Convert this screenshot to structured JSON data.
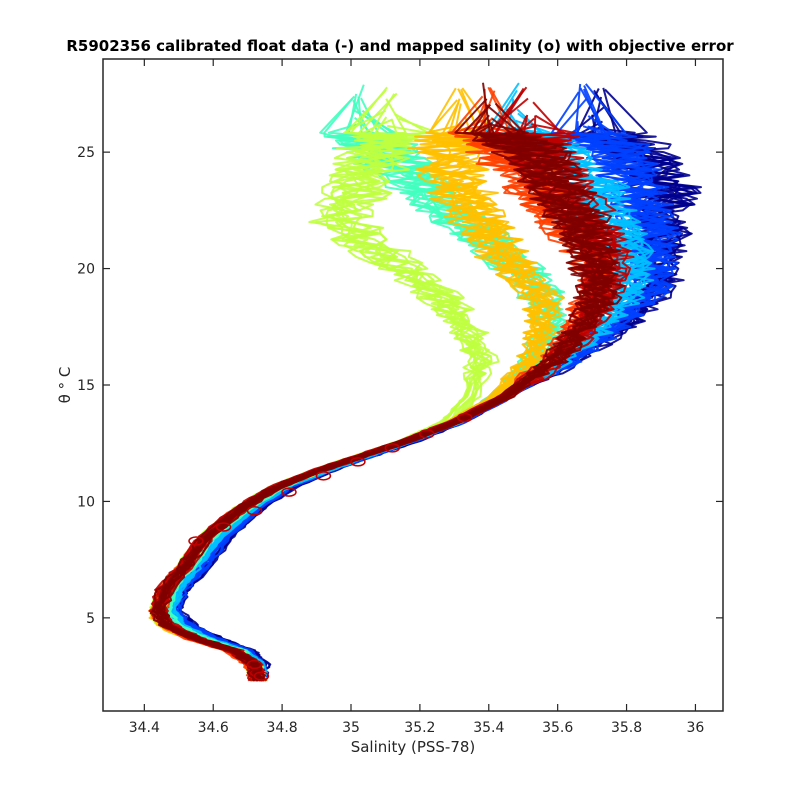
{
  "chart_data": {
    "type": "line",
    "title": "R5902356 calibrated float data (-) and mapped salinity (o) with objective error",
    "xlabel": "Salinity (PSS-78)",
    "ylabel": "θ ° C",
    "xlim": [
      34.28,
      36.08
    ],
    "ylim": [
      1.0,
      29.0
    ],
    "xticks": [
      34.4,
      34.6,
      34.8,
      35.0,
      35.2,
      35.4,
      35.6,
      35.8,
      36.0
    ],
    "xtick_labels": [
      "34.4",
      "34.6",
      "34.8",
      "35",
      "35.2",
      "35.4",
      "35.6",
      "35.8",
      "36"
    ],
    "yticks": [
      5,
      10,
      15,
      20,
      25
    ],
    "ytick_labels": [
      "5",
      "10",
      "15",
      "20",
      "25"
    ],
    "grid": false,
    "colormap": "jet",
    "colors": [
      "#00008f",
      "#0040ff",
      "#00c0ff",
      "#40ffbf",
      "#bfff40",
      "#ffc000",
      "#ff4000",
      "#bf0000",
      "#800000"
    ],
    "mean_profile": {
      "salinity": [
        34.73,
        34.72,
        34.66,
        34.55,
        34.46,
        34.44,
        34.46,
        34.52,
        34.58,
        34.68,
        34.78,
        34.9,
        35.02,
        35.16,
        35.3,
        35.45,
        35.58,
        35.66,
        35.7,
        35.7,
        35.68,
        35.66,
        35.64,
        35.62
      ],
      "theta": [
        2.3,
        3.0,
        3.6,
        4.1,
        4.7,
        5.3,
        6.2,
        7.3,
        8.5,
        9.7,
        10.6,
        11.3,
        11.9,
        12.6,
        13.4,
        14.5,
        16.0,
        17.5,
        19.0,
        20.5,
        22.0,
        23.5,
        25.0,
        26.0
      ]
    },
    "series": [
      {
        "values": [
          0.0,
          0.02,
          0.04,
          0.06,
          0.07,
          0.05,
          0.05,
          0.06,
          0.06,
          0.05,
          0.04,
          0.03,
          0.02,
          0.02,
          0.01,
          0.0,
          0.05,
          0.12,
          0.18,
          0.2,
          0.22,
          0.25,
          0.2,
          0.1
        ]
      },
      {
        "values": [
          0.0,
          0.01,
          0.03,
          0.05,
          0.06,
          0.04,
          0.04,
          0.05,
          0.05,
          0.04,
          0.03,
          0.02,
          0.02,
          0.01,
          0.01,
          0.0,
          0.04,
          0.1,
          0.16,
          0.17,
          0.18,
          0.16,
          0.12,
          0.05
        ]
      },
      {
        "values": [
          0.0,
          0.01,
          0.02,
          0.03,
          0.04,
          0.03,
          0.03,
          0.03,
          0.03,
          0.03,
          0.02,
          0.02,
          0.01,
          0.01,
          0.0,
          0.0,
          0.02,
          0.06,
          0.1,
          0.1,
          0.08,
          0.03,
          -0.05,
          -0.15
        ]
      },
      {
        "values": [
          0.0,
          0.0,
          0.01,
          0.02,
          0.02,
          0.02,
          0.01,
          0.01,
          0.01,
          0.01,
          0.01,
          0.0,
          0.0,
          0.0,
          0.0,
          -0.03,
          -0.05,
          -0.08,
          -0.15,
          -0.25,
          -0.35,
          -0.45,
          -0.55,
          -0.6
        ]
      },
      {
        "values": [
          0.0,
          0.0,
          0.0,
          0.0,
          0.0,
          0.0,
          0.0,
          0.0,
          0.0,
          0.0,
          0.0,
          0.0,
          0.0,
          0.0,
          -0.02,
          -0.1,
          -0.2,
          -0.32,
          -0.45,
          -0.6,
          -0.7,
          -0.65,
          -0.55,
          -0.5
        ]
      },
      {
        "values": [
          0.0,
          0.0,
          0.0,
          -0.01,
          -0.01,
          -0.01,
          0.0,
          0.0,
          0.0,
          0.0,
          0.0,
          0.0,
          0.0,
          0.0,
          -0.01,
          -0.03,
          -0.06,
          -0.1,
          -0.15,
          -0.25,
          -0.3,
          -0.35,
          -0.35,
          -0.3
        ]
      },
      {
        "values": [
          0.0,
          -0.01,
          -0.01,
          -0.01,
          0.0,
          0.0,
          0.0,
          0.0,
          0.0,
          0.0,
          0.0,
          0.0,
          0.0,
          0.0,
          0.0,
          0.0,
          0.0,
          0.0,
          0.02,
          0.0,
          -0.05,
          -0.12,
          -0.18,
          -0.22
        ]
      },
      {
        "values": [
          0.0,
          0.0,
          0.0,
          0.0,
          0.01,
          0.0,
          0.0,
          0.0,
          0.0,
          0.0,
          0.0,
          0.0,
          0.0,
          0.0,
          0.0,
          0.0,
          0.01,
          0.02,
          0.03,
          0.03,
          0.0,
          -0.05,
          -0.1,
          -0.1
        ]
      },
      {
        "values": [
          0.0,
          0.0,
          0.0,
          0.0,
          0.0,
          0.0,
          0.0,
          0.0,
          0.0,
          0.0,
          0.0,
          0.0,
          0.0,
          0.0,
          0.0,
          0.0,
          0.0,
          0.01,
          0.02,
          0.0,
          -0.02,
          -0.06,
          -0.12,
          -0.22
        ]
      }
    ],
    "mapped_points": {
      "salinity": [
        34.74,
        34.72,
        34.55,
        34.63,
        34.72,
        34.82,
        34.92,
        35.02,
        35.12,
        35.22,
        35.33
      ],
      "theta": [
        2.5,
        3.0,
        8.3,
        8.9,
        9.6,
        10.4,
        11.1,
        11.7,
        12.3,
        12.9,
        13.6
      ]
    }
  }
}
